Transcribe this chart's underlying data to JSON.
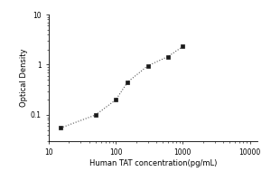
{
  "x": [
    15,
    50,
    100,
    150,
    300,
    600,
    1000
  ],
  "y": [
    0.055,
    0.1,
    0.2,
    0.45,
    0.95,
    1.45,
    2.3
  ],
  "xlim": [
    10,
    13000
  ],
  "ylim": [
    0.03,
    10
  ],
  "xlabel": "Human TAT concentration(pg/mL)",
  "ylabel": "Optical Density",
  "line_color": "#555555",
  "marker_color": "#1a1a1a",
  "marker": "s",
  "marker_size": 3,
  "line_style": ":",
  "background_color": "#ffffff",
  "tick_label_fontsize": 5.5,
  "axis_label_fontsize": 6,
  "x_ticks": [
    10,
    100,
    1000,
    10000
  ],
  "x_tick_labels": [
    "10",
    "100",
    "1000",
    "10000"
  ],
  "y_ticks": [
    0.1,
    1
  ],
  "y_tick_labels": [
    "0.1",
    "1"
  ]
}
